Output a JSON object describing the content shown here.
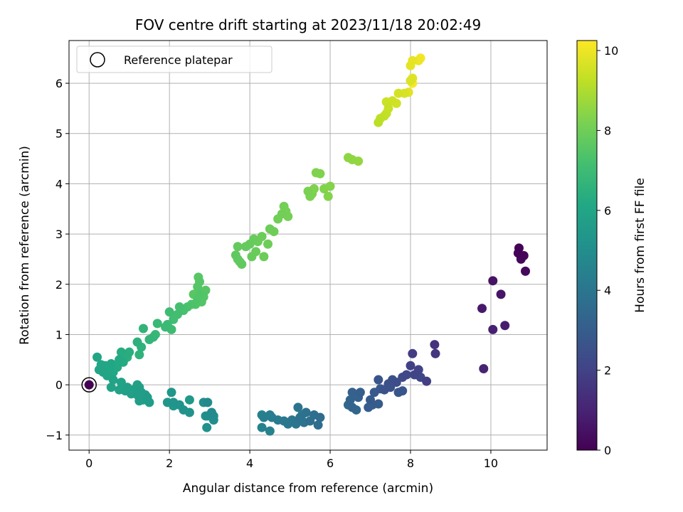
{
  "chart_data": {
    "type": "scatter",
    "title": "FOV centre drift starting at 2023/11/18 20:02:49",
    "xlabel": "Angular distance from reference (arcmin)",
    "ylabel": "Rotation from reference (arcmin)",
    "xlim": [
      -0.5,
      11.4
    ],
    "ylim": [
      -1.3,
      6.85
    ],
    "xticks": [
      0,
      2,
      4,
      6,
      8,
      10
    ],
    "yticks": [
      -1,
      0,
      1,
      2,
      3,
      4,
      5,
      6
    ],
    "grid": true,
    "legend": {
      "placement": "upper-left",
      "entries": [
        "Reference platepar"
      ]
    },
    "reference_point": {
      "x": 0,
      "y": 0
    },
    "colorbar": {
      "label": "Hours from first FF file",
      "colormap": "viridis",
      "range": [
        0,
        10.25
      ],
      "ticks": [
        0,
        2,
        4,
        6,
        8,
        10
      ]
    },
    "points": [
      {
        "x": 10.7,
        "y": 2.72,
        "h": 0.05
      },
      {
        "x": 10.68,
        "y": 2.62,
        "h": 0.1
      },
      {
        "x": 10.82,
        "y": 2.57,
        "h": 0.15
      },
      {
        "x": 10.75,
        "y": 2.5,
        "h": 0.2
      },
      {
        "x": 10.86,
        "y": 2.26,
        "h": 0.25
      },
      {
        "x": 10.05,
        "y": 2.07,
        "h": 0.5
      },
      {
        "x": 10.25,
        "y": 1.8,
        "h": 0.6
      },
      {
        "x": 9.78,
        "y": 1.52,
        "h": 0.7
      },
      {
        "x": 10.35,
        "y": 1.18,
        "h": 0.8
      },
      {
        "x": 10.05,
        "y": 1.1,
        "h": 0.9
      },
      {
        "x": 9.82,
        "y": 0.32,
        "h": 1.0
      },
      {
        "x": 8.6,
        "y": 0.8,
        "h": 1.5
      },
      {
        "x": 8.62,
        "y": 0.62,
        "h": 1.6
      },
      {
        "x": 8.05,
        "y": 0.62,
        "h": 1.8
      },
      {
        "x": 8.4,
        "y": 0.07,
        "h": 1.9
      },
      {
        "x": 8.0,
        "y": 0.38,
        "h": 2.0
      },
      {
        "x": 8.2,
        "y": 0.3,
        "h": 2.05
      },
      {
        "x": 8.1,
        "y": 0.2,
        "h": 2.1
      },
      {
        "x": 8.25,
        "y": 0.15,
        "h": 2.15
      },
      {
        "x": 7.9,
        "y": 0.2,
        "h": 2.2
      },
      {
        "x": 7.8,
        "y": 0.15,
        "h": 2.3
      },
      {
        "x": 7.65,
        "y": 0.05,
        "h": 2.4
      },
      {
        "x": 7.55,
        "y": 0.1,
        "h": 2.45
      },
      {
        "x": 7.45,
        "y": 0.02,
        "h": 2.5
      },
      {
        "x": 7.5,
        "y": -0.05,
        "h": 2.55
      },
      {
        "x": 7.35,
        "y": -0.1,
        "h": 2.6
      },
      {
        "x": 7.2,
        "y": 0.1,
        "h": 2.65
      },
      {
        "x": 7.8,
        "y": -0.12,
        "h": 2.7
      },
      {
        "x": 7.7,
        "y": -0.15,
        "h": 2.75
      },
      {
        "x": 7.25,
        "y": -0.08,
        "h": 2.8
      },
      {
        "x": 7.1,
        "y": -0.15,
        "h": 2.85
      },
      {
        "x": 7.0,
        "y": -0.3,
        "h": 2.9
      },
      {
        "x": 7.2,
        "y": -0.38,
        "h": 2.95
      },
      {
        "x": 6.95,
        "y": -0.45,
        "h": 3.0
      },
      {
        "x": 7.05,
        "y": -0.4,
        "h": 3.05
      },
      {
        "x": 6.75,
        "y": -0.15,
        "h": 3.1
      },
      {
        "x": 6.7,
        "y": -0.25,
        "h": 3.15
      },
      {
        "x": 6.55,
        "y": -0.15,
        "h": 3.2
      },
      {
        "x": 6.5,
        "y": -0.3,
        "h": 3.25
      },
      {
        "x": 6.55,
        "y": -0.45,
        "h": 3.3
      },
      {
        "x": 6.65,
        "y": -0.5,
        "h": 3.35
      },
      {
        "x": 6.45,
        "y": -0.4,
        "h": 3.4
      },
      {
        "x": 5.75,
        "y": -0.65,
        "h": 3.6
      },
      {
        "x": 5.7,
        "y": -0.8,
        "h": 3.65
      },
      {
        "x": 5.6,
        "y": -0.6,
        "h": 3.7
      },
      {
        "x": 5.5,
        "y": -0.72,
        "h": 3.75
      },
      {
        "x": 5.4,
        "y": -0.55,
        "h": 3.8
      },
      {
        "x": 5.35,
        "y": -0.75,
        "h": 3.85
      },
      {
        "x": 5.25,
        "y": -0.65,
        "h": 3.9
      },
      {
        "x": 5.2,
        "y": -0.45,
        "h": 3.95
      },
      {
        "x": 5.15,
        "y": -0.78,
        "h": 4.0
      },
      {
        "x": 5.05,
        "y": -0.7,
        "h": 4.05
      },
      {
        "x": 4.95,
        "y": -0.78,
        "h": 4.1
      },
      {
        "x": 4.85,
        "y": -0.72,
        "h": 4.15
      },
      {
        "x": 5.3,
        "y": -0.6,
        "h": 4.2
      },
      {
        "x": 4.7,
        "y": -0.7,
        "h": 4.25
      },
      {
        "x": 4.55,
        "y": -0.65,
        "h": 4.3
      },
      {
        "x": 4.5,
        "y": -0.6,
        "h": 4.35
      },
      {
        "x": 4.35,
        "y": -0.65,
        "h": 4.4
      },
      {
        "x": 4.3,
        "y": -0.6,
        "h": 4.45
      },
      {
        "x": 4.5,
        "y": -0.92,
        "h": 4.5
      },
      {
        "x": 4.3,
        "y": -0.85,
        "h": 4.55
      },
      {
        "x": 2.95,
        "y": -0.35,
        "h": 4.8
      },
      {
        "x": 3.05,
        "y": -0.55,
        "h": 4.85
      },
      {
        "x": 3.1,
        "y": -0.62,
        "h": 4.9
      },
      {
        "x": 3.1,
        "y": -0.7,
        "h": 4.95
      },
      {
        "x": 2.95,
        "y": -0.62,
        "h": 5.0
      },
      {
        "x": 2.85,
        "y": -0.35,
        "h": 5.05
      },
      {
        "x": 2.9,
        "y": -0.62,
        "h": 5.1
      },
      {
        "x": 2.93,
        "y": -0.85,
        "h": 5.12
      },
      {
        "x": 2.5,
        "y": -0.55,
        "h": 5.15
      },
      {
        "x": 2.35,
        "y": -0.5,
        "h": 5.2
      },
      {
        "x": 2.25,
        "y": -0.4,
        "h": 5.25
      },
      {
        "x": 2.1,
        "y": -0.35,
        "h": 5.3
      },
      {
        "x": 2.05,
        "y": -0.15,
        "h": 5.35
      },
      {
        "x": 1.95,
        "y": -0.35,
        "h": 5.4
      },
      {
        "x": 2.1,
        "y": -0.42,
        "h": 5.45
      },
      {
        "x": 2.5,
        "y": -0.3,
        "h": 5.5
      },
      {
        "x": 1.5,
        "y": -0.35,
        "h": 5.6
      },
      {
        "x": 1.45,
        "y": -0.25,
        "h": 5.62
      },
      {
        "x": 1.4,
        "y": -0.2,
        "h": 5.64
      },
      {
        "x": 1.35,
        "y": -0.3,
        "h": 5.66
      },
      {
        "x": 1.3,
        "y": -0.15,
        "h": 5.68
      },
      {
        "x": 1.25,
        "y": -0.32,
        "h": 5.7
      },
      {
        "x": 1.2,
        "y": -0.2,
        "h": 5.72
      },
      {
        "x": 1.15,
        "y": -0.15,
        "h": 5.74
      },
      {
        "x": 1.1,
        "y": -0.1,
        "h": 5.76
      },
      {
        "x": 1.05,
        "y": -0.18,
        "h": 5.78
      },
      {
        "x": 1.25,
        "y": -0.05,
        "h": 5.8
      },
      {
        "x": 1.2,
        "y": 0.0,
        "h": 5.82
      },
      {
        "x": 0.95,
        "y": -0.05,
        "h": 5.84
      },
      {
        "x": 0.9,
        "y": -0.12,
        "h": 5.86
      },
      {
        "x": 0.8,
        "y": 0.05,
        "h": 5.88
      },
      {
        "x": 0.75,
        "y": -0.1,
        "h": 5.9
      },
      {
        "x": 0.55,
        "y": -0.05,
        "h": 5.92
      },
      {
        "x": 0.6,
        "y": 0.1,
        "h": 5.94
      },
      {
        "x": 0.45,
        "y": 0.18,
        "h": 5.96
      },
      {
        "x": 0.35,
        "y": 0.25,
        "h": 5.98
      },
      {
        "x": 0.25,
        "y": 0.3,
        "h": 6.0
      },
      {
        "x": 0.2,
        "y": 0.55,
        "h": 6.02
      },
      {
        "x": 0.3,
        "y": 0.4,
        "h": 6.05
      },
      {
        "x": 0.4,
        "y": 0.38,
        "h": 6.08
      },
      {
        "x": 0.5,
        "y": 0.3,
        "h": 6.1
      },
      {
        "x": 0.55,
        "y": 0.42,
        "h": 6.12
      },
      {
        "x": 0.6,
        "y": 0.25,
        "h": 6.15
      },
      {
        "x": 0.7,
        "y": 0.35,
        "h": 6.18
      },
      {
        "x": 0.75,
        "y": 0.5,
        "h": 6.2
      },
      {
        "x": 0.85,
        "y": 0.45,
        "h": 6.25
      },
      {
        "x": 0.8,
        "y": 0.65,
        "h": 6.3
      },
      {
        "x": 0.9,
        "y": 0.6,
        "h": 6.35
      },
      {
        "x": 1.0,
        "y": 0.65,
        "h": 6.4
      },
      {
        "x": 0.95,
        "y": 0.55,
        "h": 6.45
      },
      {
        "x": 1.2,
        "y": 0.85,
        "h": 6.5
      },
      {
        "x": 1.3,
        "y": 0.75,
        "h": 6.55
      },
      {
        "x": 1.25,
        "y": 0.6,
        "h": 6.6
      },
      {
        "x": 1.35,
        "y": 1.12,
        "h": 6.65
      },
      {
        "x": 1.5,
        "y": 0.9,
        "h": 6.7
      },
      {
        "x": 1.6,
        "y": 0.95,
        "h": 6.75
      },
      {
        "x": 1.65,
        "y": 1.0,
        "h": 6.8
      },
      {
        "x": 1.7,
        "y": 1.22,
        "h": 6.85
      },
      {
        "x": 1.9,
        "y": 1.15,
        "h": 6.9
      },
      {
        "x": 1.95,
        "y": 1.2,
        "h": 6.95
      },
      {
        "x": 2.05,
        "y": 1.1,
        "h": 7.0
      },
      {
        "x": 2.0,
        "y": 1.45,
        "h": 7.05
      },
      {
        "x": 2.1,
        "y": 1.3,
        "h": 7.1
      },
      {
        "x": 2.2,
        "y": 1.4,
        "h": 7.15
      },
      {
        "x": 2.25,
        "y": 1.55,
        "h": 7.2
      },
      {
        "x": 2.35,
        "y": 1.48,
        "h": 7.25
      },
      {
        "x": 2.45,
        "y": 1.55,
        "h": 7.3
      },
      {
        "x": 2.55,
        "y": 1.6,
        "h": 7.35
      },
      {
        "x": 2.65,
        "y": 1.6,
        "h": 7.4
      },
      {
        "x": 2.7,
        "y": 1.7,
        "h": 7.42
      },
      {
        "x": 2.75,
        "y": 1.8,
        "h": 7.44
      },
      {
        "x": 2.85,
        "y": 1.75,
        "h": 7.46
      },
      {
        "x": 2.8,
        "y": 1.65,
        "h": 7.48
      },
      {
        "x": 2.7,
        "y": 1.95,
        "h": 7.5
      },
      {
        "x": 2.75,
        "y": 2.05,
        "h": 7.52
      },
      {
        "x": 2.9,
        "y": 1.88,
        "h": 7.54
      },
      {
        "x": 2.72,
        "y": 2.14,
        "h": 7.56
      },
      {
        "x": 2.6,
        "y": 1.8,
        "h": 7.58
      },
      {
        "x": 3.65,
        "y": 2.58,
        "h": 7.7
      },
      {
        "x": 3.7,
        "y": 2.5,
        "h": 7.72
      },
      {
        "x": 3.75,
        "y": 2.45,
        "h": 7.74
      },
      {
        "x": 3.8,
        "y": 2.4,
        "h": 7.76
      },
      {
        "x": 3.7,
        "y": 2.75,
        "h": 7.78
      },
      {
        "x": 3.9,
        "y": 2.75,
        "h": 7.8
      },
      {
        "x": 4.0,
        "y": 2.8,
        "h": 7.82
      },
      {
        "x": 4.05,
        "y": 2.55,
        "h": 7.84
      },
      {
        "x": 4.1,
        "y": 2.9,
        "h": 7.86
      },
      {
        "x": 4.15,
        "y": 2.65,
        "h": 7.88
      },
      {
        "x": 4.2,
        "y": 2.85,
        "h": 7.9
      },
      {
        "x": 4.3,
        "y": 2.95,
        "h": 7.92
      },
      {
        "x": 4.35,
        "y": 2.55,
        "h": 7.94
      },
      {
        "x": 4.45,
        "y": 2.8,
        "h": 7.96
      },
      {
        "x": 4.5,
        "y": 3.1,
        "h": 7.98
      },
      {
        "x": 4.6,
        "y": 3.05,
        "h": 8.0
      },
      {
        "x": 4.7,
        "y": 3.3,
        "h": 8.02
      },
      {
        "x": 4.8,
        "y": 3.4,
        "h": 8.04
      },
      {
        "x": 4.85,
        "y": 3.55,
        "h": 8.06
      },
      {
        "x": 4.95,
        "y": 3.35,
        "h": 8.08
      },
      {
        "x": 4.9,
        "y": 3.45,
        "h": 8.1
      },
      {
        "x": 5.45,
        "y": 3.85,
        "h": 8.2
      },
      {
        "x": 5.5,
        "y": 3.75,
        "h": 8.22
      },
      {
        "x": 5.55,
        "y": 3.8,
        "h": 8.24
      },
      {
        "x": 5.6,
        "y": 3.9,
        "h": 8.26
      },
      {
        "x": 5.65,
        "y": 4.22,
        "h": 8.28
      },
      {
        "x": 5.75,
        "y": 4.2,
        "h": 8.3
      },
      {
        "x": 5.85,
        "y": 3.9,
        "h": 8.32
      },
      {
        "x": 5.95,
        "y": 3.75,
        "h": 8.34
      },
      {
        "x": 6.0,
        "y": 3.95,
        "h": 8.36
      },
      {
        "x": 6.45,
        "y": 4.52,
        "h": 8.5
      },
      {
        "x": 6.55,
        "y": 4.48,
        "h": 8.55
      },
      {
        "x": 6.7,
        "y": 4.45,
        "h": 8.6
      },
      {
        "x": 7.2,
        "y": 5.22,
        "h": 9.2
      },
      {
        "x": 7.25,
        "y": 5.3,
        "h": 9.25
      },
      {
        "x": 7.35,
        "y": 5.35,
        "h": 9.3
      },
      {
        "x": 7.4,
        "y": 5.4,
        "h": 9.35
      },
      {
        "x": 7.45,
        "y": 5.5,
        "h": 9.4
      },
      {
        "x": 7.4,
        "y": 5.63,
        "h": 9.45
      },
      {
        "x": 7.55,
        "y": 5.65,
        "h": 9.5
      },
      {
        "x": 7.65,
        "y": 5.6,
        "h": 9.55
      },
      {
        "x": 7.7,
        "y": 5.8,
        "h": 9.6
      },
      {
        "x": 7.85,
        "y": 5.8,
        "h": 9.65
      },
      {
        "x": 8.0,
        "y": 6.05,
        "h": 9.7
      },
      {
        "x": 8.05,
        "y": 6.1,
        "h": 9.75
      },
      {
        "x": 7.95,
        "y": 5.82,
        "h": 9.8
      },
      {
        "x": 8.0,
        "y": 6.35,
        "h": 9.85
      },
      {
        "x": 8.05,
        "y": 6.45,
        "h": 9.9
      },
      {
        "x": 8.2,
        "y": 6.45,
        "h": 10.0
      },
      {
        "x": 8.25,
        "y": 6.5,
        "h": 10.1
      },
      {
        "x": 8.05,
        "y": 6.0,
        "h": 10.2
      }
    ]
  }
}
